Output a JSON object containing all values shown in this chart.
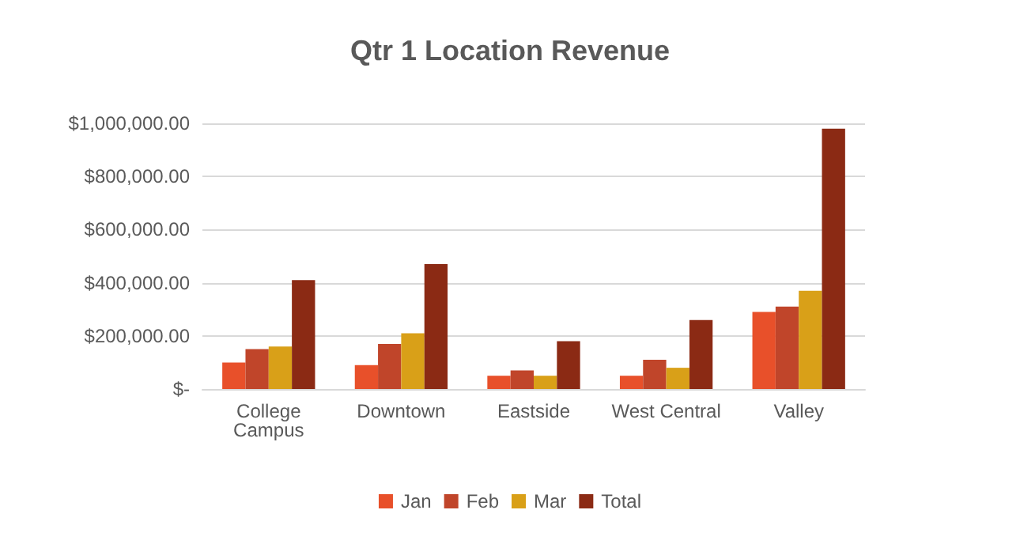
{
  "chart_data": {
    "type": "bar",
    "title": "Qtr 1 Location Revenue",
    "categories": [
      "College\nCampus",
      "Downtown",
      "Eastside",
      "West Central",
      "Valley"
    ],
    "series": [
      {
        "name": "Jan",
        "color": "#e8502a",
        "values": [
          100000,
          90000,
          50000,
          50000,
          290000
        ]
      },
      {
        "name": "Feb",
        "color": "#c0452a",
        "values": [
          150000,
          170000,
          70000,
          110000,
          310000
        ]
      },
      {
        "name": "Mar",
        "color": "#d9a018",
        "values": [
          160000,
          210000,
          50000,
          80000,
          370000
        ]
      },
      {
        "name": "Total",
        "color": "#8b2a14",
        "values": [
          410000,
          470000,
          180000,
          260000,
          980000
        ]
      }
    ],
    "ylim": [
      0,
      1000000
    ],
    "yticks": [
      {
        "value": 0,
        "label": "$-"
      },
      {
        "value": 200000,
        "label": "$200,000.00"
      },
      {
        "value": 400000,
        "label": "$400,000.00"
      },
      {
        "value": 600000,
        "label": "$600,000.00"
      },
      {
        "value": 800000,
        "label": "$800,000.00"
      },
      {
        "value": 1000000,
        "label": "$1,000,000.00"
      }
    ],
    "grid": "y",
    "legend": "bottom"
  }
}
